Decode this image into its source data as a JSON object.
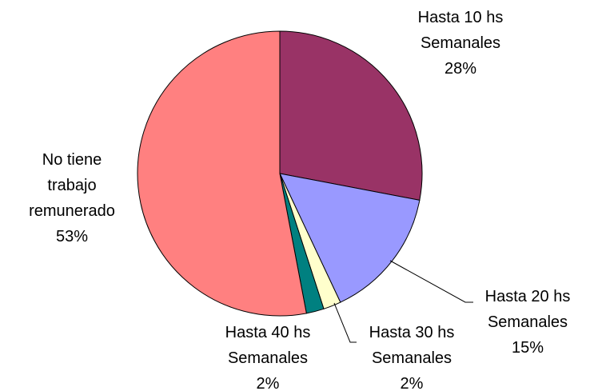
{
  "chart_data": {
    "type": "pie",
    "categories": [
      "Hasta 10 hs Semanales",
      "Hasta 20 hs Semanales",
      "Hasta 30 hs Semanales",
      "Hasta 40 hs Semanales",
      "No tiene trabajo remunerado"
    ],
    "values": [
      28,
      15,
      2,
      2,
      53
    ],
    "value_labels": [
      "28%",
      "15%",
      "2%",
      "2%",
      "53%"
    ],
    "colors": [
      "#993366",
      "#9999ff",
      "#ffffcc",
      "#008080",
      "#ff8080"
    ]
  }
}
